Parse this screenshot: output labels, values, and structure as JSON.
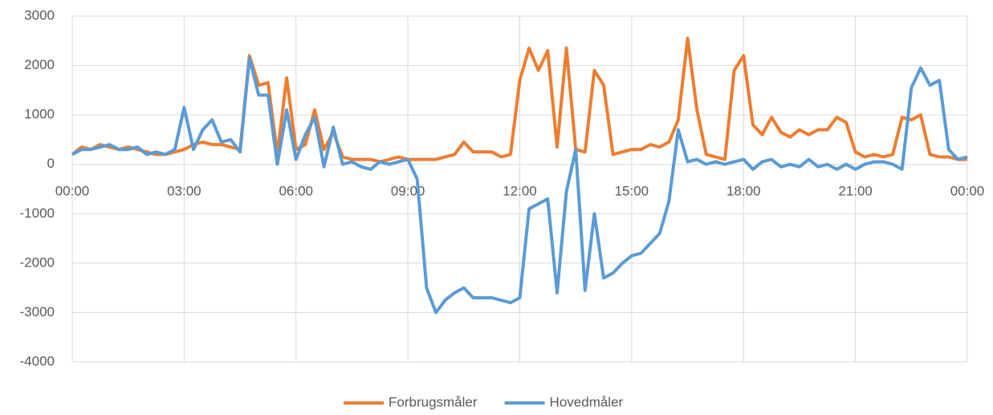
{
  "chart_data": {
    "type": "line",
    "x": [
      0,
      0.25,
      0.5,
      0.75,
      1,
      1.25,
      1.5,
      1.75,
      2,
      2.25,
      2.5,
      2.75,
      3,
      3.25,
      3.5,
      3.75,
      4,
      4.25,
      4.5,
      4.75,
      5,
      5.25,
      5.5,
      5.75,
      6,
      6.25,
      6.5,
      6.75,
      7,
      7.25,
      7.5,
      7.75,
      8,
      8.25,
      8.5,
      8.75,
      9,
      9.25,
      9.5,
      9.75,
      10,
      10.25,
      10.5,
      10.75,
      11,
      11.25,
      11.5,
      11.75,
      12,
      12.25,
      12.5,
      12.75,
      13,
      13.25,
      13.5,
      13.75,
      14,
      14.25,
      14.5,
      14.75,
      15,
      15.25,
      15.5,
      15.75,
      16,
      16.25,
      16.5,
      16.75,
      17,
      17.25,
      17.5,
      17.75,
      18,
      18.25,
      18.5,
      18.75,
      19,
      19.25,
      19.5,
      19.75,
      20,
      20.25,
      20.5,
      20.75,
      21,
      21.25,
      21.5,
      21.75,
      22,
      22.25,
      22.5,
      22.75,
      23,
      23.25,
      23.5,
      23.75,
      24
    ],
    "series": [
      {
        "name": "Forbrugsmåler",
        "color": "#ed7d31",
        "values": [
          200,
          350,
          300,
          400,
          350,
          300,
          350,
          300,
          250,
          200,
          200,
          250,
          300,
          400,
          450,
          400,
          400,
          350,
          300,
          2200,
          1600,
          1650,
          200,
          1750,
          300,
          400,
          1100,
          300,
          650,
          150,
          100,
          100,
          100,
          50,
          100,
          150,
          100,
          100,
          100,
          100,
          150,
          200,
          450,
          250,
          250,
          250,
          150,
          200,
          1700,
          2350,
          1900,
          2300,
          350,
          2350,
          300,
          250,
          1900,
          1600,
          200,
          250,
          300,
          300,
          400,
          350,
          450,
          900,
          2550,
          1100,
          200,
          150,
          100,
          1900,
          2200,
          800,
          600,
          950,
          650,
          550,
          700,
          600,
          700,
          700,
          950,
          850,
          250,
          150,
          200,
          150,
          200,
          950,
          900,
          1000,
          200,
          150,
          150,
          100,
          100
        ]
      },
      {
        "name": "Hovedmåler",
        "color": "#5b9bd5",
        "values": [
          200,
          300,
          300,
          350,
          400,
          300,
          300,
          350,
          200,
          250,
          200,
          300,
          1150,
          300,
          700,
          900,
          450,
          500,
          250,
          2150,
          1400,
          1400,
          0,
          1100,
          100,
          600,
          950,
          -50,
          750,
          0,
          50,
          -50,
          -100,
          50,
          0,
          50,
          100,
          -300,
          -2500,
          -3000,
          -2750,
          -2600,
          -2500,
          -2700,
          -2700,
          -2700,
          -2750,
          -2800,
          -2700,
          -900,
          -800,
          -700,
          -2600,
          -550,
          300,
          -2550,
          -1000,
          -2300,
          -2200,
          -2000,
          -1850,
          -1800,
          -1600,
          -1400,
          -750,
          700,
          50,
          100,
          0,
          50,
          0,
          50,
          100,
          -100,
          50,
          100,
          -50,
          0,
          -50,
          100,
          -50,
          0,
          -100,
          0,
          -100,
          0,
          50,
          50,
          0,
          -100,
          1550,
          1950,
          1600,
          1700,
          300,
          100,
          150
        ]
      }
    ],
    "xlim": [
      0,
      24
    ],
    "xticks": [
      {
        "value": 0,
        "label": "00:00"
      },
      {
        "value": 3,
        "label": "03:00"
      },
      {
        "value": 6,
        "label": "06:00"
      },
      {
        "value": 9,
        "label": "09:00"
      },
      {
        "value": 12,
        "label": "12:00"
      },
      {
        "value": 15,
        "label": "15:00"
      },
      {
        "value": 18,
        "label": "18:00"
      },
      {
        "value": 21,
        "label": "21:00"
      },
      {
        "value": 24,
        "label": "00:00"
      }
    ],
    "ylim": [
      -4000,
      3000
    ],
    "yticks": [
      -4000,
      -3000,
      -2000,
      -1000,
      0,
      1000,
      2000,
      3000
    ],
    "grid": true,
    "legend": "bottom"
  }
}
